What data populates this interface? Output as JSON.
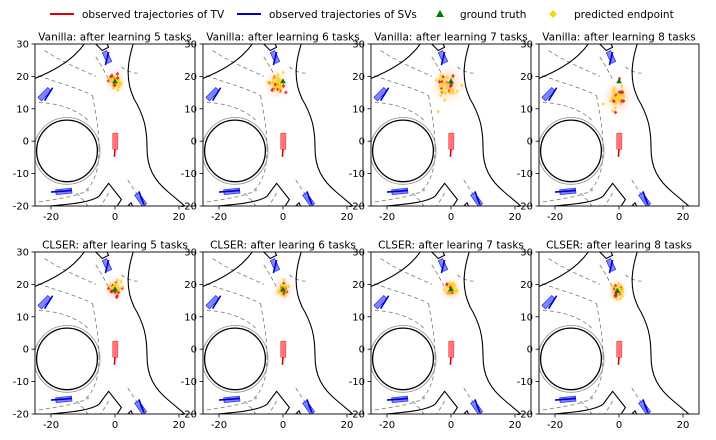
{
  "legend": {
    "items": [
      {
        "label": "observed trajectories of TV",
        "marker": "line",
        "color": "#e00000"
      },
      {
        "label": "observed trajectories of SVs",
        "marker": "line",
        "color": "#0000cc"
      },
      {
        "label": "ground truth",
        "marker": "triangle",
        "color": "#007a00"
      },
      {
        "label": "predicted endpoint",
        "marker": "diamond",
        "color": "#ffd21a"
      }
    ]
  },
  "chart_data": [
    {
      "type": "scatter",
      "row": 1,
      "col": 1,
      "title": "Vanilla: after learning 5 tasks",
      "xlim": [
        -25,
        25
      ],
      "ylim": [
        -20,
        30
      ],
      "xticks": [
        -20,
        0,
        20
      ],
      "yticks": [
        -20,
        -10,
        0,
        10,
        20,
        30
      ],
      "ground_truth": [
        0,
        18.5
      ],
      "predicted_endpoints": {
        "center": [
          0,
          18.5
        ],
        "spread": 1.0
      }
    },
    {
      "type": "scatter",
      "row": 1,
      "col": 2,
      "title": "Vanilla: after learning 6 tasks",
      "xlim": [
        -25,
        25
      ],
      "ylim": [
        -20,
        30
      ],
      "xticks": [
        -20,
        0,
        20
      ],
      "yticks": [
        -20,
        -10,
        0,
        10,
        20,
        30
      ],
      "ground_truth": [
        0,
        18.5
      ],
      "predicted_endpoints": {
        "center": [
          -2,
          17.5
        ],
        "spread": 1.4
      }
    },
    {
      "type": "scatter",
      "row": 1,
      "col": 3,
      "title": "Vanilla: after learning 7 tasks",
      "xlim": [
        -25,
        25
      ],
      "ylim": [
        -20,
        30
      ],
      "xticks": [
        -20,
        0,
        20
      ],
      "yticks": [
        -20,
        -10,
        0,
        10,
        20,
        30
      ],
      "ground_truth": [
        0,
        18.5
      ],
      "predicted_endpoints": {
        "center": [
          -1,
          17.5
        ],
        "spread": 2.2
      }
    },
    {
      "type": "scatter",
      "row": 1,
      "col": 4,
      "title": "Vanilla: after learning 8 tasks",
      "xlim": [
        -25,
        25
      ],
      "ylim": [
        -20,
        30
      ],
      "xticks": [
        -20,
        0,
        20
      ],
      "yticks": [
        -20,
        -10,
        0,
        10,
        20,
        30
      ],
      "ground_truth": [
        0,
        18.5
      ],
      "predicted_endpoints": {
        "center": [
          -0.5,
          13.5
        ],
        "spread": 1.8
      }
    },
    {
      "type": "scatter",
      "row": 2,
      "col": 1,
      "title": "CLSER: after learing 5 tasks",
      "xlim": [
        -25,
        25
      ],
      "ylim": [
        -20,
        30
      ],
      "xticks": [
        -20,
        0,
        20
      ],
      "yticks": [
        -20,
        -10,
        0,
        10,
        20,
        30
      ],
      "ground_truth": [
        0,
        18.5
      ],
      "predicted_endpoints": {
        "center": [
          0,
          18.5
        ],
        "spread": 1.0
      }
    },
    {
      "type": "scatter",
      "row": 2,
      "col": 2,
      "title": "CLSER: after learing 6 tasks",
      "xlim": [
        -25,
        25
      ],
      "ylim": [
        -20,
        30
      ],
      "xticks": [
        -20,
        0,
        20
      ],
      "yticks": [
        -20,
        -10,
        0,
        10,
        20,
        30
      ],
      "ground_truth": [
        0,
        18.5
      ],
      "predicted_endpoints": {
        "center": [
          0,
          18.5
        ],
        "spread": 0.9
      }
    },
    {
      "type": "scatter",
      "row": 2,
      "col": 3,
      "title": "CLSER: after learing 7 tasks",
      "xlim": [
        -25,
        25
      ],
      "ylim": [
        -20,
        30
      ],
      "xticks": [
        -20,
        0,
        20
      ],
      "yticks": [
        -20,
        -10,
        0,
        10,
        20,
        30
      ],
      "ground_truth": [
        0,
        18.5
      ],
      "predicted_endpoints": {
        "center": [
          0,
          18.5
        ],
        "spread": 0.9
      }
    },
    {
      "type": "scatter",
      "row": 2,
      "col": 4,
      "title": "CLSER: after learing 8 tasks",
      "xlim": [
        -25,
        25
      ],
      "ylim": [
        -20,
        30
      ],
      "xticks": [
        -20,
        0,
        20
      ],
      "yticks": [
        -20,
        -10,
        0,
        10,
        20,
        30
      ],
      "ground_truth": [
        -0.5,
        18.0
      ],
      "predicted_endpoints": {
        "center": [
          -0.5,
          18.0
        ],
        "spread": 0.9
      }
    }
  ]
}
